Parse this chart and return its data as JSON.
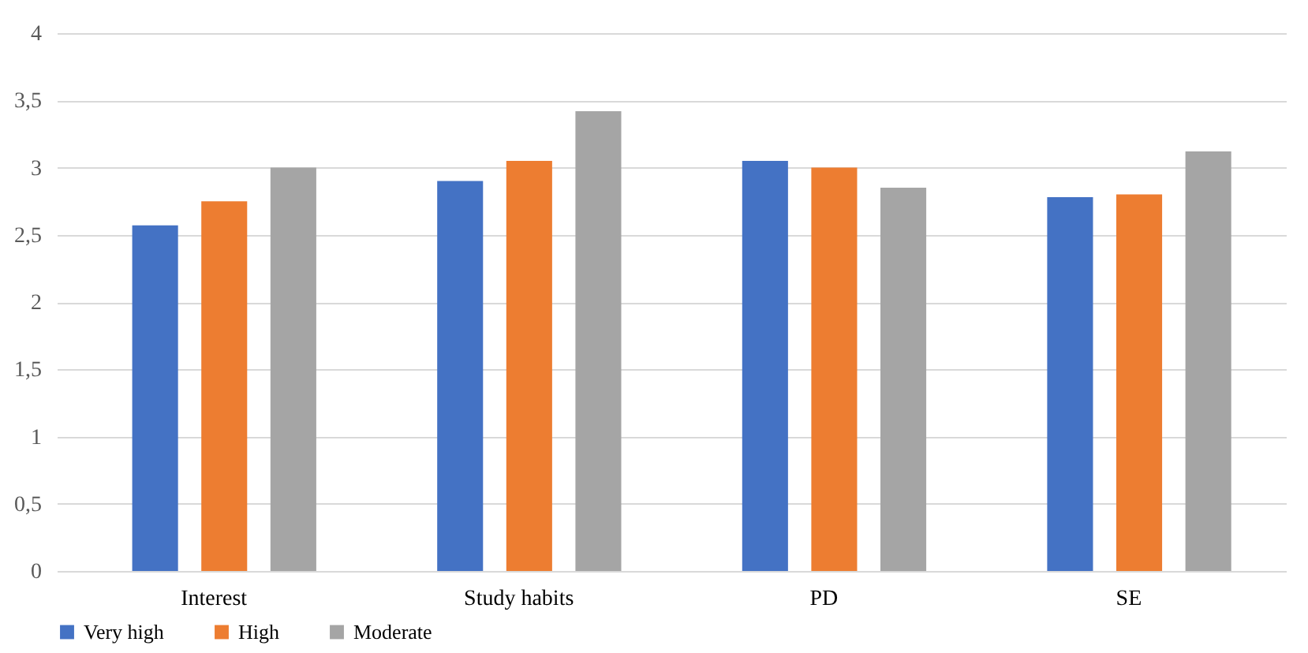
{
  "chart_data": {
    "type": "bar",
    "categories": [
      "Interest",
      "Study habits",
      "PD",
      "SE"
    ],
    "series": [
      {
        "name": "Very high",
        "color": "#4472c4",
        "values": [
          2.57,
          2.9,
          3.05,
          2.78
        ]
      },
      {
        "name": "High",
        "color": "#ed7d31",
        "values": [
          2.75,
          3.05,
          3.0,
          2.8
        ]
      },
      {
        "name": "Moderate",
        "color": "#a5a5a5",
        "values": [
          3.0,
          3.42,
          2.85,
          3.12
        ]
      }
    ],
    "ylim": [
      0,
      4
    ],
    "yticks": [
      0,
      {
        "value": 0.5,
        "label": "0,5"
      },
      1,
      {
        "value": 1.5,
        "label": "1,5"
      },
      2,
      {
        "value": 2.5,
        "label": "2,5"
      },
      3,
      {
        "value": 3.5,
        "label": "3,5"
      },
      4
    ],
    "grid": "y",
    "legend": "bottom"
  }
}
